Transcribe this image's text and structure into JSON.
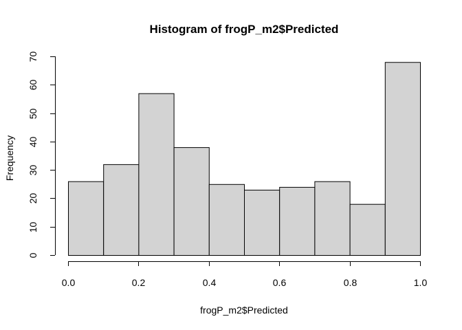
{
  "chart_data": {
    "type": "bar",
    "subtype": "histogram",
    "title": "Histogram of frogP_m2$Predicted",
    "xlabel": "frogP_m2$Predicted",
    "ylabel": "Frequency",
    "bins": [
      {
        "start": 0.0,
        "end": 0.1,
        "count": 26
      },
      {
        "start": 0.1,
        "end": 0.2,
        "count": 32
      },
      {
        "start": 0.2,
        "end": 0.3,
        "count": 57
      },
      {
        "start": 0.3,
        "end": 0.4,
        "count": 38
      },
      {
        "start": 0.4,
        "end": 0.5,
        "count": 25
      },
      {
        "start": 0.5,
        "end": 0.6,
        "count": 23
      },
      {
        "start": 0.6,
        "end": 0.7,
        "count": 24
      },
      {
        "start": 0.7,
        "end": 0.8,
        "count": 26
      },
      {
        "start": 0.8,
        "end": 0.9,
        "count": 18
      },
      {
        "start": 0.9,
        "end": 1.0,
        "count": 68
      }
    ],
    "xlim": [
      0.0,
      1.0
    ],
    "ylim": [
      0,
      70
    ],
    "x_ticks": [
      "0.0",
      "0.2",
      "0.4",
      "0.6",
      "0.8",
      "1.0"
    ],
    "y_ticks": [
      "0",
      "10",
      "20",
      "30",
      "40",
      "50",
      "60",
      "70"
    ],
    "bar_color": "#d3d3d3",
    "grid": false,
    "legend": "none"
  }
}
